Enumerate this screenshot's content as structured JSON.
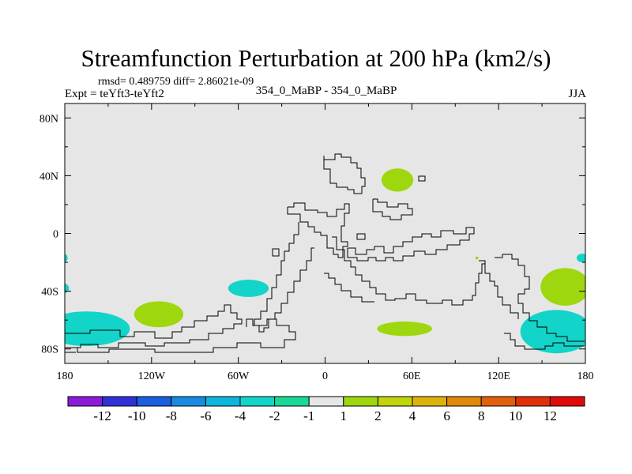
{
  "chart_data": {
    "type": "contour-map",
    "title": "Streamfunction Perturbation at 200 hPa (km2/s)",
    "stats": "rmsd= 0.489759 diff= 2.86021e-09",
    "experiment": "Expt = teYft3-teYft2",
    "center_label": "354_0_MaBP - 354_0_MaBP",
    "season": "JJA",
    "xlim": [
      -180,
      180
    ],
    "ylim": [
      -90,
      90
    ],
    "x_ticks": [
      {
        "value": -180,
        "label": "180"
      },
      {
        "value": -120,
        "label": "120W"
      },
      {
        "value": -60,
        "label": "60W"
      },
      {
        "value": 0,
        "label": "0"
      },
      {
        "value": 60,
        "label": "60E"
      },
      {
        "value": 120,
        "label": "120E"
      },
      {
        "value": 180,
        "label": "180"
      }
    ],
    "y_ticks": [
      {
        "value": 80,
        "label": "80N"
      },
      {
        "value": 40,
        "label": "40N"
      },
      {
        "value": 0,
        "label": "0"
      },
      {
        "value": -40,
        "label": "40S"
      },
      {
        "value": -80,
        "label": "80S"
      }
    ],
    "colorbar": {
      "colors": [
        "#8c1bd9",
        "#3030d8",
        "#1c5ee0",
        "#178be2",
        "#0db6dc",
        "#12d4c8",
        "#19d996",
        "#e6e6e6",
        "#9ed70e",
        "#c2d40a",
        "#dcb30a",
        "#e08a0a",
        "#e05f0a",
        "#e0300a",
        "#e00a0a"
      ],
      "labels": [
        "-12",
        "-10",
        "-8",
        "-6",
        "-4",
        "-2",
        "-1",
        "1",
        "2",
        "4",
        "6",
        "8",
        "10",
        "12"
      ]
    },
    "anomalies": [
      {
        "lon": -115,
        "lat": -56,
        "rlon": 17,
        "rlat": 9,
        "level": "2"
      },
      {
        "lon": -53,
        "lat": -38,
        "rlon": 14,
        "rlat": 6,
        "level": "-2"
      },
      {
        "lon": -165,
        "lat": -66,
        "rlon": 30,
        "rlat": 12,
        "level": "-2"
      },
      {
        "lon": -183,
        "lat": -38,
        "rlon": 6,
        "rlat": 4,
        "level": "-2"
      },
      {
        "lon": -181,
        "lat": -17,
        "rlon": 3,
        "rlat": 3,
        "level": "-2"
      },
      {
        "lon": 50,
        "lat": 37,
        "rlon": 11,
        "rlat": 8,
        "level": "2"
      },
      {
        "lon": 55,
        "lat": -66,
        "rlon": 19,
        "rlat": 5,
        "level": "2"
      },
      {
        "lon": 166,
        "lat": -37,
        "rlon": 17,
        "rlat": 13,
        "level": "2"
      },
      {
        "lon": 160,
        "lat": -68,
        "rlon": 25,
        "rlat": 15,
        "level": "-2"
      },
      {
        "lon": 178,
        "lat": -17,
        "rlon": 4,
        "rlat": 3,
        "level": "-2"
      },
      {
        "lon": 105,
        "lat": -17,
        "rlon": 1,
        "rlat": 1,
        "level": "2"
      }
    ]
  }
}
